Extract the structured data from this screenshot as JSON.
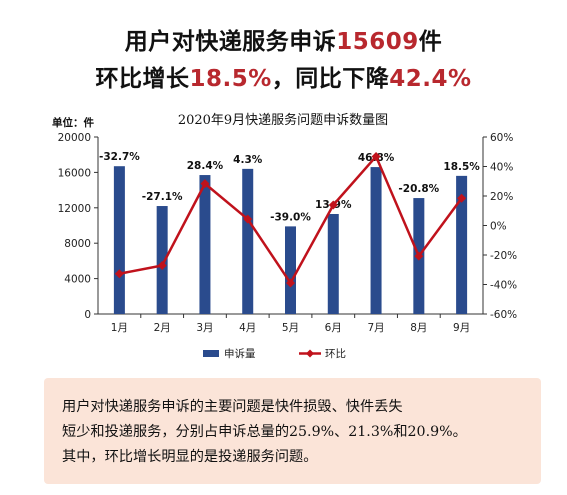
{
  "headline": {
    "line1_prefix": "用户对快递服务申诉",
    "line1_value": "15609",
    "line1_suffix": "件",
    "line2_prefix": "环比增长",
    "line2_value1": "18.5%",
    "line2_middle": "，同比下降",
    "line2_value2": "42.4%"
  },
  "chart_data": {
    "type": "bar+line",
    "title": "2020年9月快递服务问题申诉数量图",
    "unit_label": "单位：件",
    "categories": [
      "1月",
      "2月",
      "3月",
      "4月",
      "5月",
      "6月",
      "7月",
      "8月",
      "9月"
    ],
    "series": [
      {
        "name": "申诉量",
        "type": "bar",
        "axis": "left",
        "color": "#2a4b8d",
        "values": [
          16700,
          12200,
          15700,
          16400,
          9900,
          11300,
          16600,
          13100,
          15609
        ]
      },
      {
        "name": "环比",
        "type": "line",
        "axis": "right",
        "color": "#c0121c",
        "values": [
          -32.7,
          -27.1,
          28.4,
          4.3,
          -39.0,
          13.9,
          46.8,
          -20.8,
          18.5
        ],
        "labels": [
          "-32.7%",
          "-27.1%",
          "28.4%",
          "4.3%",
          "-39.0%",
          "13.9%",
          "46.8%",
          "-20.8%",
          "18.5%"
        ]
      }
    ],
    "y_left": {
      "min": 0,
      "max": 20000,
      "ticks": [
        "0",
        "4000",
        "8000",
        "12000",
        "16000",
        "20000"
      ]
    },
    "y_right": {
      "min": -60,
      "max": 60,
      "ticks": [
        "-60%",
        "-40%",
        "-20%",
        "0%",
        "20%",
        "40%",
        "60%"
      ]
    },
    "grid": false,
    "legend_position": "bottom"
  },
  "note": {
    "line1": "用户对快递服务申诉的主要问题是快件损毁、快件丢失",
    "line2": "短少和投递服务，分别占申诉总量的25.9%、21.3%和20.9%。",
    "line3": "其中，环比增长明显的是投递服务问题。"
  }
}
